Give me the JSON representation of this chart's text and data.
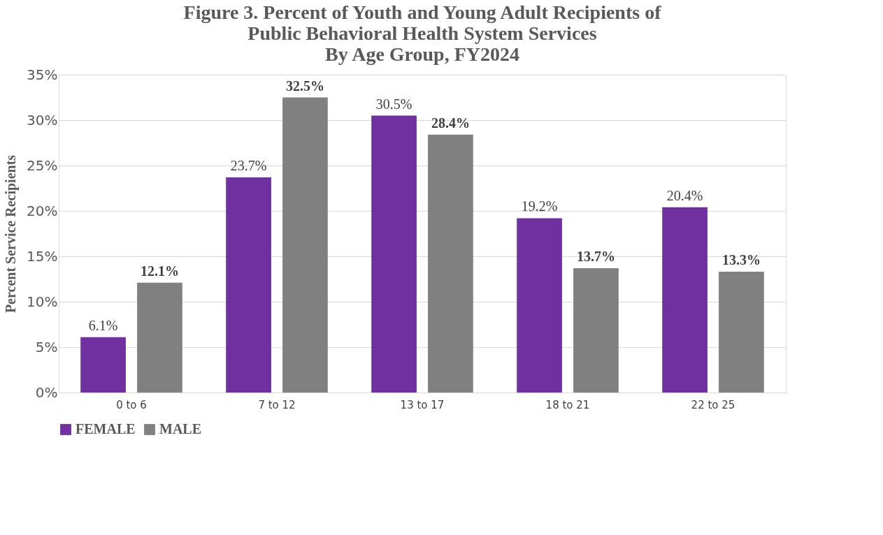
{
  "chart_data": {
    "type": "bar",
    "title": [
      "Figure 3. Percent of Youth and Young Adult Recipients of",
      "Public Behavioral Health System Services",
      "By Age Group, FY2024"
    ],
    "ylabel": "Percent Service Recipients",
    "categories": [
      "0 to 6",
      "7 to 12",
      "13 to 17",
      "18 to 21",
      "22 to 25"
    ],
    "series": [
      {
        "name": "FEMALE",
        "color": "#7030a0",
        "values": [
          6.1,
          23.7,
          30.5,
          19.2,
          20.4
        ],
        "value_labels": [
          "6.1%",
          "23.7%",
          "30.5%",
          "19.2%",
          "20.4%"
        ]
      },
      {
        "name": "MALE",
        "color": "#808080",
        "values": [
          12.1,
          32.5,
          28.4,
          13.7,
          13.3
        ],
        "value_labels": [
          "12.1%",
          "32.5%",
          "28.4%",
          "13.7%",
          "13.3%"
        ]
      }
    ],
    "ylim": [
      0,
      35
    ],
    "yticks": [
      {
        "value": 0,
        "label": "0%"
      },
      {
        "value": 5,
        "label": "5%"
      },
      {
        "value": 10,
        "label": "10%"
      },
      {
        "value": 15,
        "label": "15%"
      },
      {
        "value": 20,
        "label": "20%"
      },
      {
        "value": 25,
        "label": "25%"
      },
      {
        "value": 30,
        "label": "30%"
      },
      {
        "value": 35,
        "label": "35%"
      }
    ],
    "grid": "y",
    "legend": "bottom"
  }
}
